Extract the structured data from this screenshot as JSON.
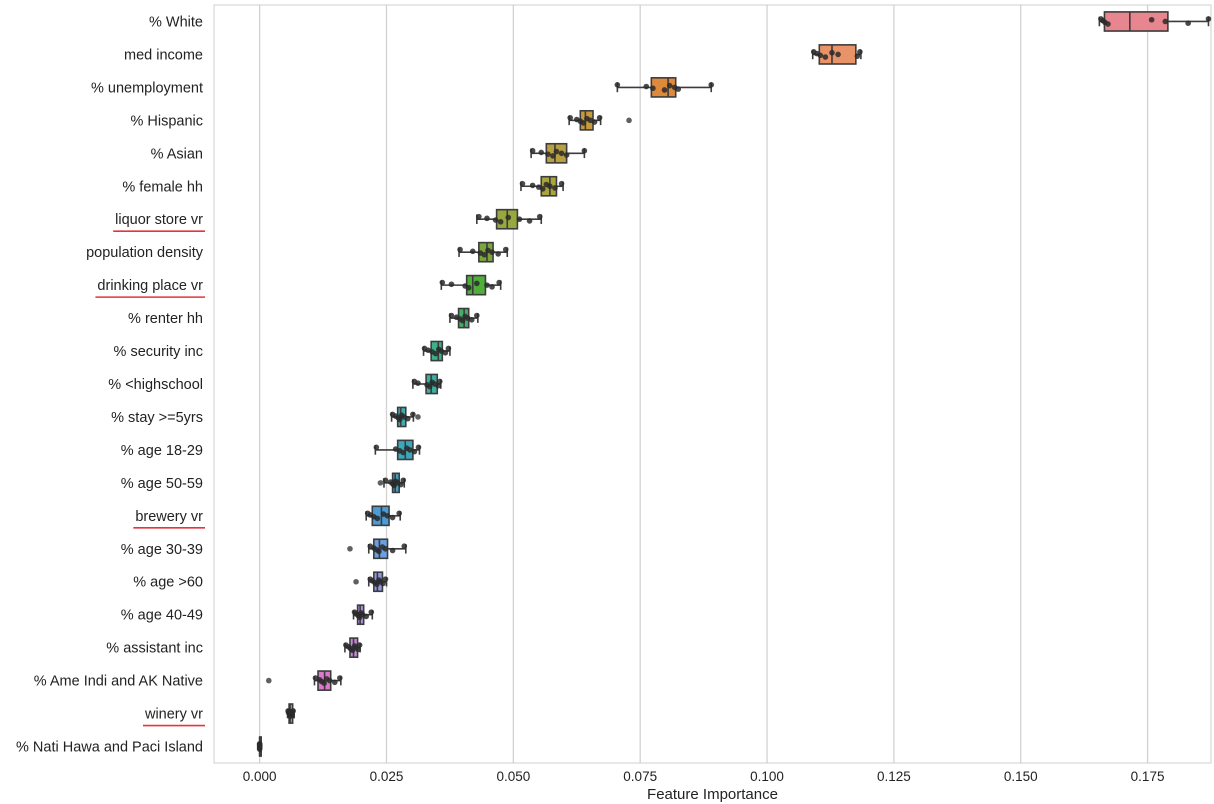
{
  "chart_data": {
    "type": "box",
    "orientation": "horizontal",
    "xlabel": "Feature Importance",
    "ylabel": "",
    "xlim": [
      -0.009,
      0.1875
    ],
    "xticks": [
      0.0,
      0.025,
      0.05,
      0.075,
      0.1,
      0.125,
      0.15,
      0.175
    ],
    "xtick_labels": [
      "0.000",
      "0.025",
      "0.050",
      "0.075",
      "0.100",
      "0.125",
      "0.150",
      "0.175"
    ],
    "grid": "vertical",
    "underline_color": "#e8323c",
    "categories": [
      {
        "label": "% White",
        "underlined": false,
        "color": "#e8868f",
        "box": {
          "whislo": 0.1655,
          "q1": 0.1665,
          "med": 0.1715,
          "q3": 0.179,
          "whishi": 0.187
        },
        "points": [
          0.1658,
          0.1662,
          0.1666,
          0.1672,
          0.1758,
          0.1785,
          0.183,
          0.187
        ],
        "outliers": []
      },
      {
        "label": "med income",
        "underlined": false,
        "color": "#e89468",
        "box": {
          "whislo": 0.109,
          "q1": 0.1103,
          "med": 0.1128,
          "q3": 0.1175,
          "whishi": 0.1185
        },
        "points": [
          0.1092,
          0.1098,
          0.1105,
          0.1115,
          0.1128,
          0.114,
          0.1178,
          0.1183
        ],
        "outliers": []
      },
      {
        "label": "% unemployment",
        "underlined": false,
        "color": "#de8a3a",
        "box": {
          "whislo": 0.0705,
          "q1": 0.0772,
          "med": 0.0805,
          "q3": 0.082,
          "whishi": 0.089
        },
        "points": [
          0.0705,
          0.0762,
          0.0775,
          0.0798,
          0.0808,
          0.0818,
          0.0825,
          0.089
        ],
        "outliers": []
      },
      {
        "label": "% Hispanic",
        "underlined": false,
        "color": "#c89a3c",
        "box": {
          "whislo": 0.061,
          "q1": 0.0632,
          "med": 0.0642,
          "q3": 0.0657,
          "whishi": 0.0672
        },
        "points": [
          0.0612,
          0.0625,
          0.0632,
          0.0638,
          0.0645,
          0.0652,
          0.066,
          0.067
        ],
        "outliers": [
          0.0728
        ]
      },
      {
        "label": "% Asian",
        "underlined": false,
        "color": "#b8a040",
        "box": {
          "whislo": 0.0535,
          "q1": 0.0565,
          "med": 0.0582,
          "q3": 0.0605,
          "whishi": 0.064
        },
        "points": [
          0.0538,
          0.0555,
          0.0568,
          0.0578,
          0.0585,
          0.0595,
          0.0605,
          0.064
        ],
        "outliers": []
      },
      {
        "label": "% female hh",
        "underlined": false,
        "color": "#aaa43c",
        "box": {
          "whislo": 0.0515,
          "q1": 0.0555,
          "med": 0.0572,
          "q3": 0.0585,
          "whishi": 0.0598
        },
        "points": [
          0.0518,
          0.0538,
          0.055,
          0.0558,
          0.0565,
          0.0572,
          0.0582,
          0.0595
        ],
        "outliers": []
      },
      {
        "label": "liquor store vr",
        "underlined": true,
        "color": "#99a83e",
        "box": {
          "whislo": 0.0428,
          "q1": 0.0467,
          "med": 0.0488,
          "q3": 0.0508,
          "whishi": 0.0555
        },
        "points": [
          0.0432,
          0.0448,
          0.0465,
          0.0475,
          0.049,
          0.0512,
          0.0532,
          0.0552
        ],
        "outliers": []
      },
      {
        "label": "population density",
        "underlined": false,
        "color": "#7ca63c",
        "box": {
          "whislo": 0.0393,
          "q1": 0.0432,
          "med": 0.0448,
          "q3": 0.046,
          "whishi": 0.0488
        },
        "points": [
          0.0395,
          0.042,
          0.0435,
          0.0443,
          0.045,
          0.0458,
          0.047,
          0.0485
        ],
        "outliers": []
      },
      {
        "label": "drinking place vr",
        "underlined": true,
        "color": "#4fae3c",
        "box": {
          "whislo": 0.0358,
          "q1": 0.0408,
          "med": 0.042,
          "q3": 0.0445,
          "whishi": 0.0475
        },
        "points": [
          0.036,
          0.0378,
          0.0405,
          0.0412,
          0.0428,
          0.0448,
          0.0458,
          0.0472
        ],
        "outliers": []
      },
      {
        "label": "% renter hh",
        "underlined": false,
        "color": "#45ad6a",
        "box": {
          "whislo": 0.0375,
          "q1": 0.0392,
          "med": 0.0403,
          "q3": 0.0412,
          "whishi": 0.043
        },
        "points": [
          0.0378,
          0.0388,
          0.0395,
          0.04,
          0.0405,
          0.041,
          0.0418,
          0.0428
        ],
        "outliers": []
      },
      {
        "label": "% security inc",
        "underlined": false,
        "color": "#3fb08c",
        "box": {
          "whislo": 0.0323,
          "q1": 0.0338,
          "med": 0.0352,
          "q3": 0.036,
          "whishi": 0.0375
        },
        "points": [
          0.0325,
          0.0332,
          0.034,
          0.0347,
          0.0353,
          0.0358,
          0.0366,
          0.0372
        ],
        "outliers": []
      },
      {
        "label": "% <highschool",
        "underlined": false,
        "color": "#3cb0a0",
        "box": {
          "whislo": 0.0302,
          "q1": 0.0328,
          "med": 0.0338,
          "q3": 0.035,
          "whishi": 0.0357
        },
        "points": [
          0.0305,
          0.0312,
          0.033,
          0.0335,
          0.034,
          0.0345,
          0.0352,
          0.0355
        ],
        "outliers": []
      },
      {
        "label": "% stay >=5yrs",
        "underlined": false,
        "color": "#3aaeb0",
        "box": {
          "whislo": 0.026,
          "q1": 0.0272,
          "med": 0.0278,
          "q3": 0.0288,
          "whishi": 0.0303
        },
        "points": [
          0.0262,
          0.0268,
          0.0273,
          0.0276,
          0.028,
          0.0285,
          0.0292,
          0.0302
        ],
        "outliers": [
          0.0312
        ]
      },
      {
        "label": "% age 18-29",
        "underlined": false,
        "color": "#3aa8bc",
        "box": {
          "whislo": 0.0228,
          "q1": 0.0272,
          "med": 0.0287,
          "q3": 0.0302,
          "whishi": 0.0315
        },
        "points": [
          0.023,
          0.0268,
          0.0276,
          0.0283,
          0.029,
          0.0296,
          0.0305,
          0.0313
        ],
        "outliers": []
      },
      {
        "label": "% age 50-59",
        "underlined": false,
        "color": "#3aa2c4",
        "box": {
          "whislo": 0.0245,
          "q1": 0.0262,
          "med": 0.0267,
          "q3": 0.0275,
          "whishi": 0.0285
        },
        "points": [
          0.0248,
          0.0258,
          0.0262,
          0.0265,
          0.0268,
          0.0272,
          0.0278,
          0.0283
        ],
        "outliers": [
          0.0238
        ]
      },
      {
        "label": "brewery vr",
        "underlined": true,
        "color": "#4a9cd8",
        "box": {
          "whislo": 0.021,
          "q1": 0.0222,
          "med": 0.024,
          "q3": 0.0255,
          "whishi": 0.0277
        },
        "points": [
          0.0213,
          0.0218,
          0.0225,
          0.0232,
          0.0244,
          0.0252,
          0.0262,
          0.0275
        ],
        "outliers": []
      },
      {
        "label": "% age 30-39",
        "underlined": false,
        "color": "#6a9fe0",
        "box": {
          "whislo": 0.0215,
          "q1": 0.0225,
          "med": 0.0236,
          "q3": 0.0252,
          "whishi": 0.0288
        },
        "points": [
          0.0218,
          0.0225,
          0.023,
          0.0235,
          0.0242,
          0.0248,
          0.0262,
          0.0285
        ],
        "outliers": [
          0.0178
        ]
      },
      {
        "label": "% age >60",
        "underlined": false,
        "color": "#8e99e2",
        "box": {
          "whislo": 0.0215,
          "q1": 0.0225,
          "med": 0.0232,
          "q3": 0.0242,
          "whishi": 0.025
        },
        "points": [
          0.0218,
          0.0222,
          0.0227,
          0.0231,
          0.0235,
          0.0238,
          0.0243,
          0.0248
        ],
        "outliers": [
          0.019
        ]
      },
      {
        "label": "% age 40-49",
        "underlined": false,
        "color": "#b090de",
        "box": {
          "whislo": 0.0185,
          "q1": 0.0193,
          "med": 0.0198,
          "q3": 0.0205,
          "whishi": 0.0222
        },
        "points": [
          0.0187,
          0.019,
          0.0194,
          0.0197,
          0.02,
          0.0203,
          0.021,
          0.022
        ],
        "outliers": []
      },
      {
        "label": "% assistant inc",
        "underlined": false,
        "color": "#c48ad8",
        "box": {
          "whislo": 0.0168,
          "q1": 0.0178,
          "med": 0.0185,
          "q3": 0.0193,
          "whishi": 0.0198
        },
        "points": [
          0.017,
          0.0175,
          0.0179,
          0.0183,
          0.0187,
          0.019,
          0.0194,
          0.0197
        ],
        "outliers": []
      },
      {
        "label": "% Ame Indi and AK Native",
        "underlined": false,
        "color": "#dc78cc",
        "box": {
          "whislo": 0.0108,
          "q1": 0.0115,
          "med": 0.0128,
          "q3": 0.014,
          "whishi": 0.016
        },
        "points": [
          0.011,
          0.0118,
          0.0122,
          0.0127,
          0.0132,
          0.0138,
          0.0148,
          0.0158
        ],
        "outliers": [
          0.0018
        ]
      },
      {
        "label": "winery vr",
        "underlined": true,
        "color": "#e082b8",
        "box": {
          "whislo": 0.0055,
          "q1": 0.0058,
          "med": 0.006,
          "q3": 0.0065,
          "whishi": 0.0068
        },
        "points": [
          0.0056,
          0.0057,
          0.0059,
          0.006,
          0.0061,
          0.0062,
          0.0064,
          0.0066
        ],
        "outliers": []
      },
      {
        "label": "% Nati Hawa and Paci Island",
        "underlined": false,
        "color": "#e48aa6",
        "box": {
          "whislo": 0.0,
          "q1": 0.0,
          "med": 0.0,
          "q3": 0.0,
          "whishi": 0.0
        },
        "points": [
          0.0,
          0.0,
          0.0,
          0.0,
          0.0,
          0.0,
          0.0,
          0.0
        ],
        "outliers": []
      }
    ]
  }
}
